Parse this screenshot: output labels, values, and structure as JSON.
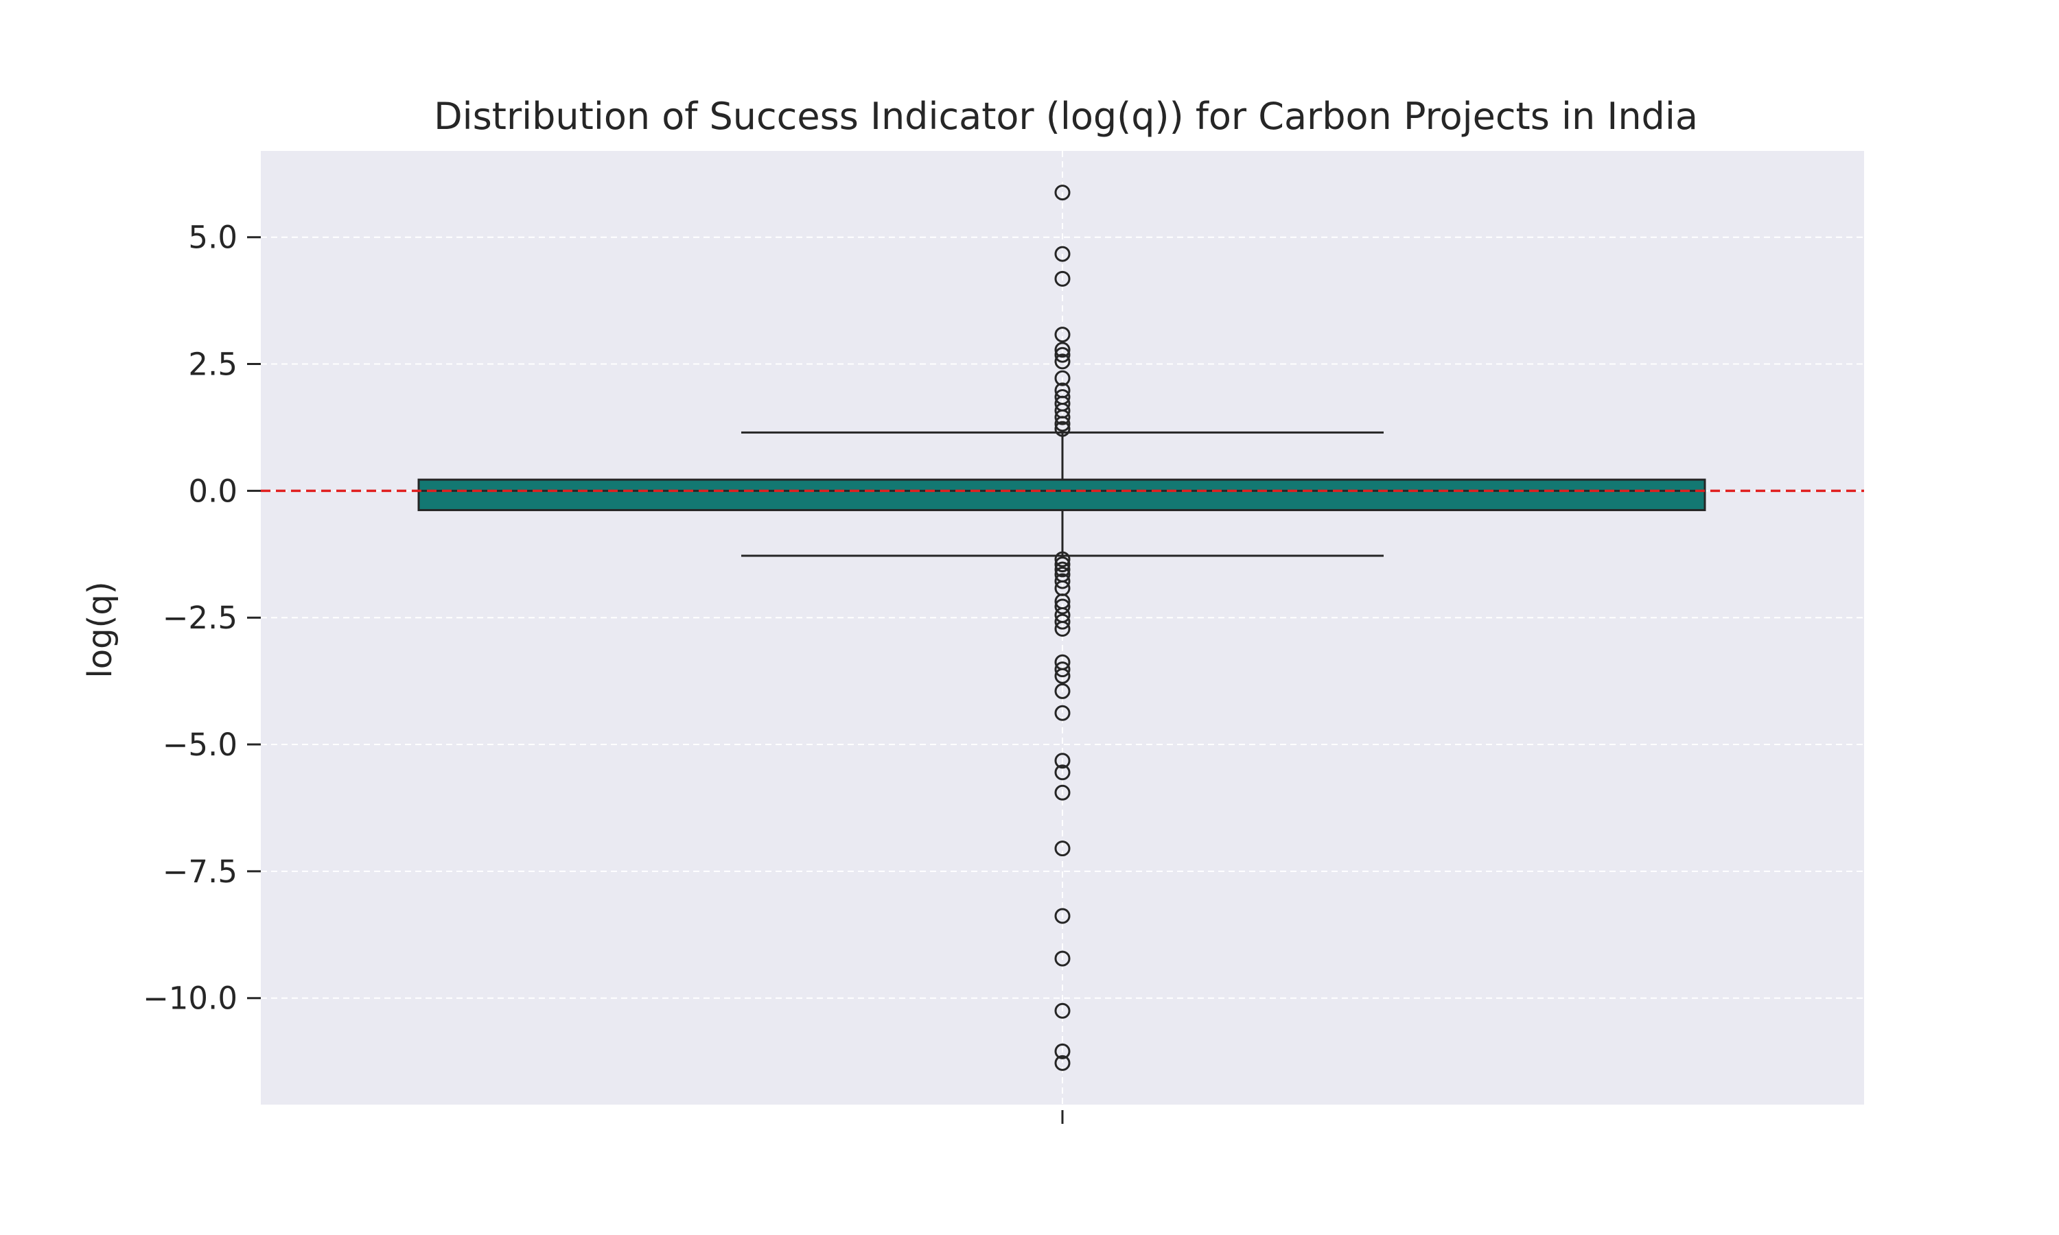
{
  "chart_data": {
    "type": "box",
    "title": "Distribution of Success Indicator (log(q)) for Carbon Projects in India",
    "xlabel": "",
    "ylabel": "log(q)",
    "ylim": [
      -12.1,
      6.7
    ],
    "y_ticks": [
      5.0,
      2.5,
      0.0,
      -2.5,
      -5.0,
      -7.5,
      -10.0
    ],
    "y_tick_labels": [
      "5.0",
      "2.5",
      "0.0",
      "−2.5",
      "−5.0",
      "−7.5",
      "−10.0"
    ],
    "grid": true,
    "reference_line": {
      "y": 0.0,
      "style": "dashed",
      "color": "#e02020"
    },
    "box": {
      "q1": -0.38,
      "median": 0.0,
      "q3": 0.22,
      "whisker_low": -1.28,
      "whisker_high": 1.15,
      "fill": "#137872",
      "outliers": [
        5.88,
        4.67,
        4.18,
        3.08,
        2.78,
        2.68,
        2.55,
        2.22,
        1.98,
        1.85,
        1.72,
        1.58,
        1.45,
        1.32,
        1.22,
        -1.35,
        -1.45,
        -1.55,
        -1.65,
        -1.78,
        -1.92,
        -2.18,
        -2.28,
        -2.45,
        -2.58,
        -2.72,
        -3.38,
        -3.52,
        -3.65,
        -3.95,
        -4.38,
        -5.32,
        -5.55,
        -5.95,
        -7.05,
        -8.38,
        -9.22,
        -10.25,
        -11.05,
        -11.28
      ]
    },
    "colors": {
      "plot_background": "#eaeaf2",
      "grid": "#ffffff",
      "box_edge": "#262626",
      "reference": "#e02020"
    }
  }
}
